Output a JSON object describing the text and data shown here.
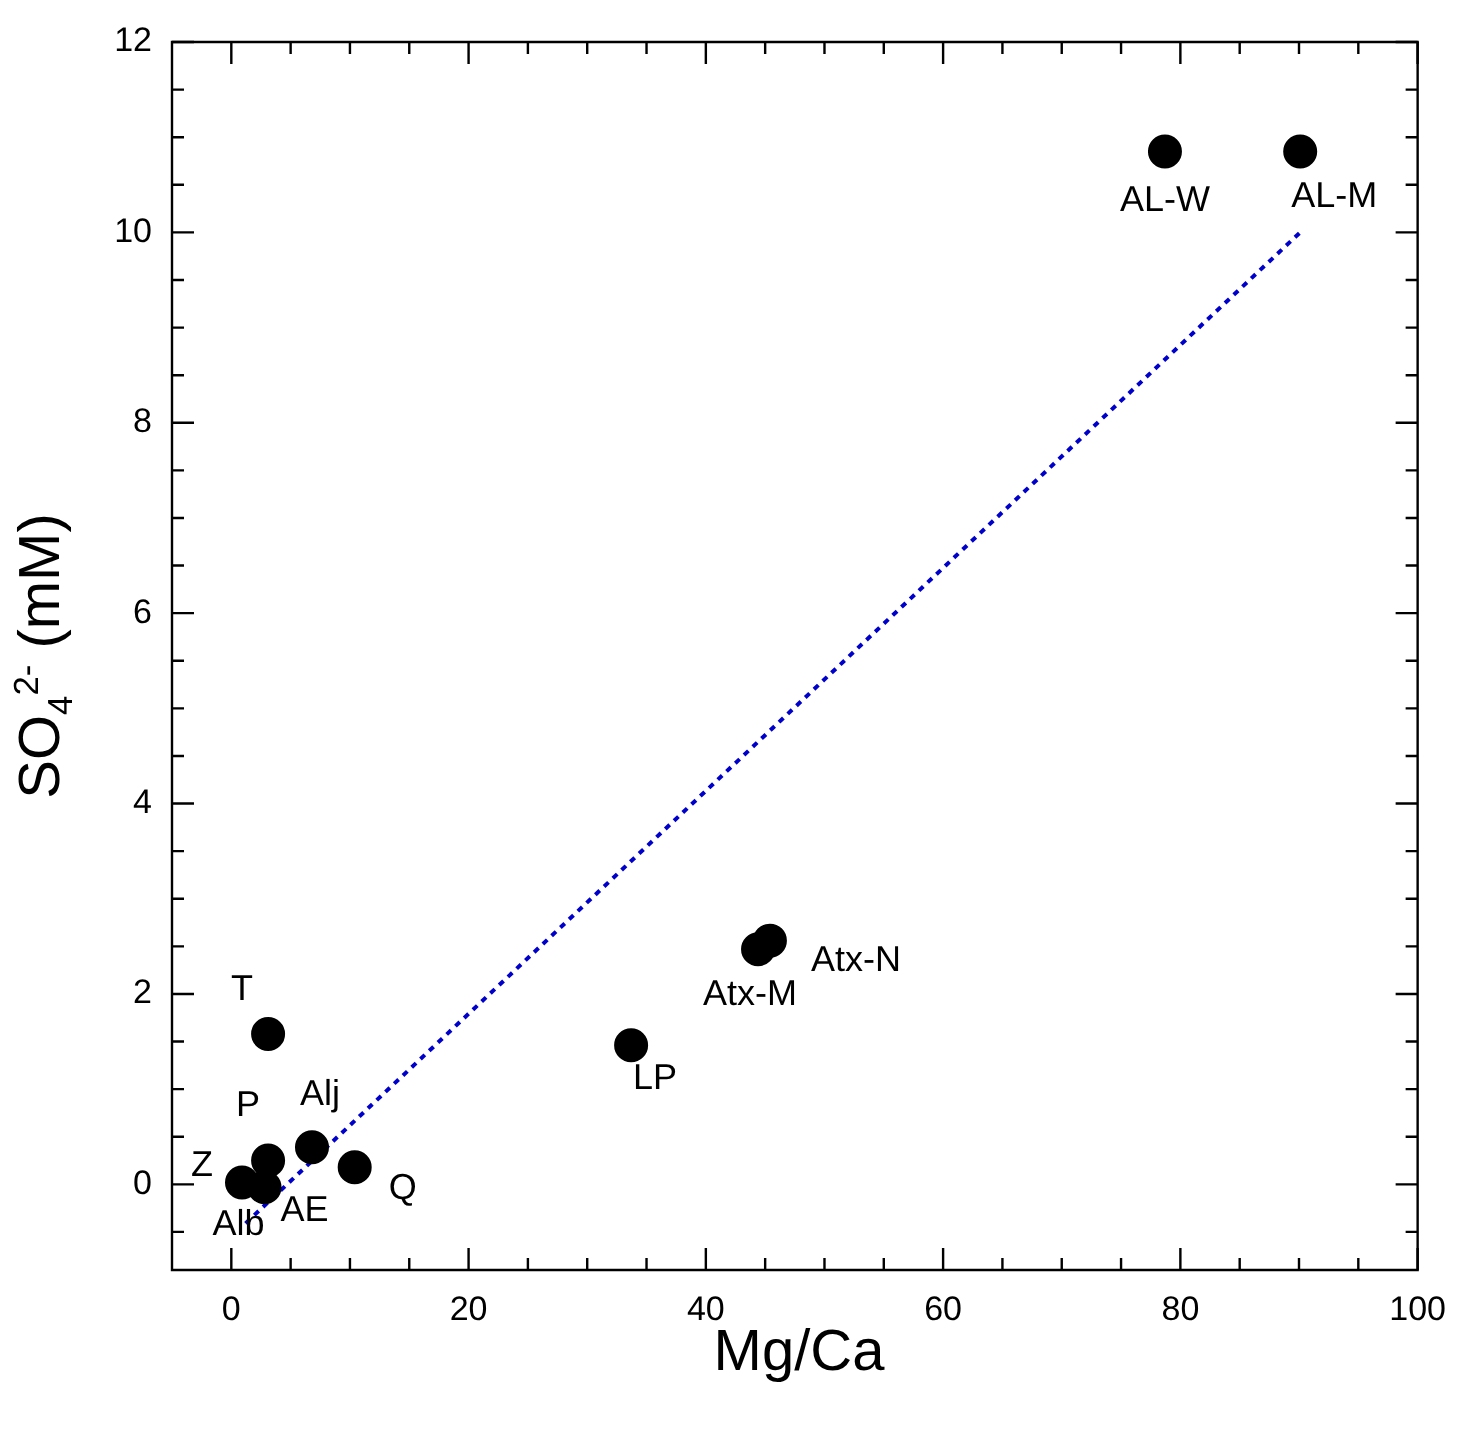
{
  "chart_data": {
    "type": "scatter",
    "xlabel": "Mg/Ca",
    "ylabel": "SO$_{4}$$^{2-}$ (mM)",
    "xlim": [
      -5,
      100
    ],
    "ylim": [
      -0.9,
      12
    ],
    "xticks": [
      0,
      {
        "value": 5,
        "label": null
      },
      {
        "value": 10,
        "label": null
      },
      {
        "value": 15,
        "label": null
      },
      20,
      {
        "value": 25,
        "label": null
      },
      {
        "value": 30,
        "label": null
      },
      {
        "value": 35,
        "label": null
      },
      40,
      {
        "value": 45,
        "label": null
      },
      {
        "value": 50,
        "label": null
      },
      {
        "value": 55,
        "label": null
      },
      60,
      {
        "value": 65,
        "label": null
      },
      {
        "value": 70,
        "label": null
      },
      {
        "value": 75,
        "label": null
      },
      80,
      {
        "value": 85,
        "label": null
      },
      {
        "value": 90,
        "label": null
      },
      {
        "value": 95,
        "label": null
      },
      100
    ],
    "yticks": [
      {
        "value": -0.5,
        "label": null
      },
      0,
      {
        "value": 0.5,
        "label": null
      },
      {
        "value": 1,
        "label": null
      },
      {
        "value": 1.5,
        "label": null
      },
      2,
      {
        "value": 2.5,
        "label": null
      },
      {
        "value": 3,
        "label": null
      },
      {
        "value": 3.5,
        "label": null
      },
      4,
      {
        "value": 4.5,
        "label": null
      },
      {
        "value": 5,
        "label": null
      },
      {
        "value": 5.5,
        "label": null
      },
      6,
      {
        "value": 6.5,
        "label": null
      },
      {
        "value": 7,
        "label": null
      },
      {
        "value": 7.5,
        "label": null
      },
      8,
      {
        "value": 8.5,
        "label": null
      },
      {
        "value": 9,
        "label": null
      },
      {
        "value": 9.5,
        "label": null
      },
      10,
      {
        "value": 10.5,
        "label": null
      },
      {
        "value": 11,
        "label": null
      },
      {
        "value": 11.5,
        "label": null
      },
      12
    ],
    "grid": false,
    "legend": false,
    "marker": "circle",
    "series": [
      {
        "color": "#000000",
        "x": [
          78.7,
          90.1,
          45.4,
          44.4,
          33.7,
          3.1,
          3.1,
          6.8,
          10.4,
          0.9,
          2.8
        ],
        "values": [
          10.85,
          10.85,
          2.56,
          2.47,
          1.46,
          1.58,
          0.25,
          0.39,
          0.18,
          0.02,
          -0.03
        ]
      },
      {
        "type": "line",
        "color": "#0000cc",
        "line_style": "dotted",
        "marker": "none",
        "x": [
          1.2,
          90.1
        ],
        "values": [
          -0.41,
          10.0
        ]
      }
    ],
    "annotations": [
      {
        "text": "AL-W",
        "x": 78.7,
        "y": 10.85
      },
      {
        "text": "AL-M",
        "x": 90.1,
        "y": 10.85
      },
      {
        "text": "Atx-N",
        "x": 45.4,
        "y": 2.56
      },
      {
        "text": "Atx-M",
        "x": 44.4,
        "y": 2.47
      },
      {
        "text": "LP",
        "x": 33.7,
        "y": 1.46
      },
      {
        "text": "T",
        "x": 3.1,
        "y": 1.58
      },
      {
        "text": "P",
        "x": 3.1,
        "y": 0.25
      },
      {
        "text": "Alj",
        "x": 6.8,
        "y": 0.39
      },
      {
        "text": "Q",
        "x": 10.4,
        "y": 0.18
      },
      {
        "text": "Z",
        "x": 0.9,
        "y": 0.02
      },
      {
        "text": "Alb",
        "x": 2.8,
        "y": -0.03
      },
      {
        "text": "AE",
        "x": 2.8,
        "y": -0.03
      }
    ]
  }
}
